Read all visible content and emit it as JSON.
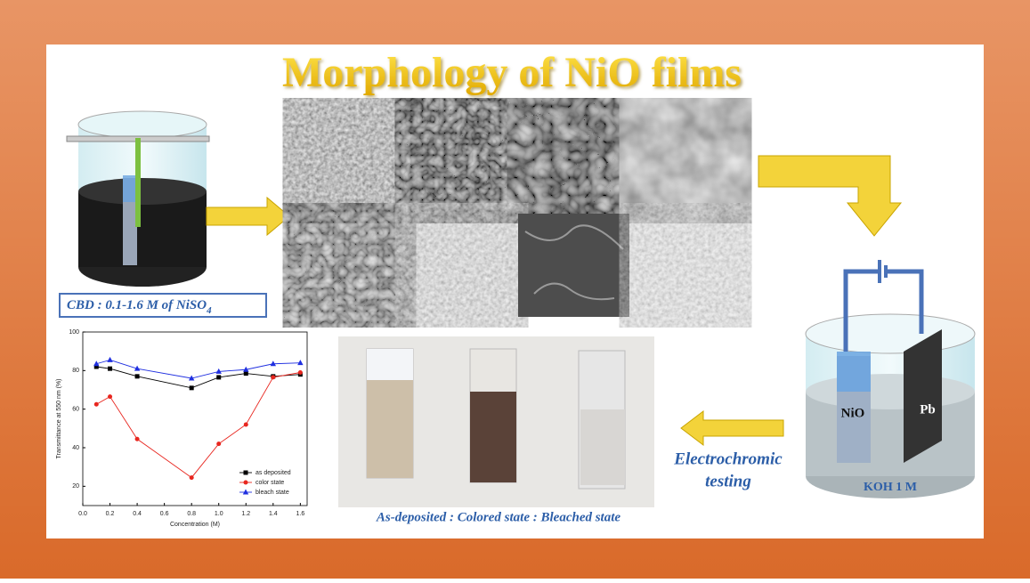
{
  "title": "Morphology of NiO films",
  "cbd_label": {
    "text": "CBD : 0.1-1.6 M of NiSO",
    "subscript": "4"
  },
  "cell": {
    "electrode_left": "NiO",
    "electrode_right": "Pb",
    "electrolyte": "KOH 1 M"
  },
  "test_label": [
    "Electrochromic",
    "testing"
  ],
  "photo_caption": "As-deposited : Colored state : Bleached state",
  "chart_data": {
    "type": "line",
    "x_label": "Concentration (M)",
    "y_label": "Transmittance at 550 nm (%)",
    "x": [
      0.1,
      0.2,
      0.4,
      0.8,
      1.0,
      1.2,
      1.4,
      1.6
    ],
    "series": [
      {
        "name": "as deposited",
        "color": "#000000",
        "marker": "square",
        "values": [
          82,
          81,
          77,
          71,
          76.5,
          78.5,
          77,
          78
        ]
      },
      {
        "name": "color state",
        "color": "#e8261f",
        "marker": "circle",
        "values": [
          62.5,
          66.5,
          44.5,
          24.5,
          42,
          52,
          76.5,
          79
        ]
      },
      {
        "name": "bleach state",
        "color": "#1f2fe0",
        "marker": "triangle",
        "values": [
          83.5,
          85.5,
          81,
          76,
          79.5,
          80.5,
          83.5,
          84
        ]
      }
    ],
    "xlim": [
      0,
      1.65
    ],
    "xticks": [
      {
        "value": 0,
        "label": "0.0"
      },
      {
        "value": 0.2,
        "label": "0.2"
      },
      {
        "value": 0.4,
        "label": "0.4"
      },
      {
        "value": 0.6,
        "label": "0.6"
      },
      {
        "value": 0.8,
        "label": "0.8"
      },
      {
        "value": 1,
        "label": "1.0"
      },
      {
        "value": 1.2,
        "label": "1.2"
      },
      {
        "value": 1.4,
        "label": "1.4"
      },
      {
        "value": 1.6,
        "label": "1.6"
      }
    ],
    "ylim": [
      10,
      100
    ],
    "yticks": [
      20,
      40,
      60,
      80,
      100
    ],
    "legend": "lower right",
    "grid": false
  }
}
